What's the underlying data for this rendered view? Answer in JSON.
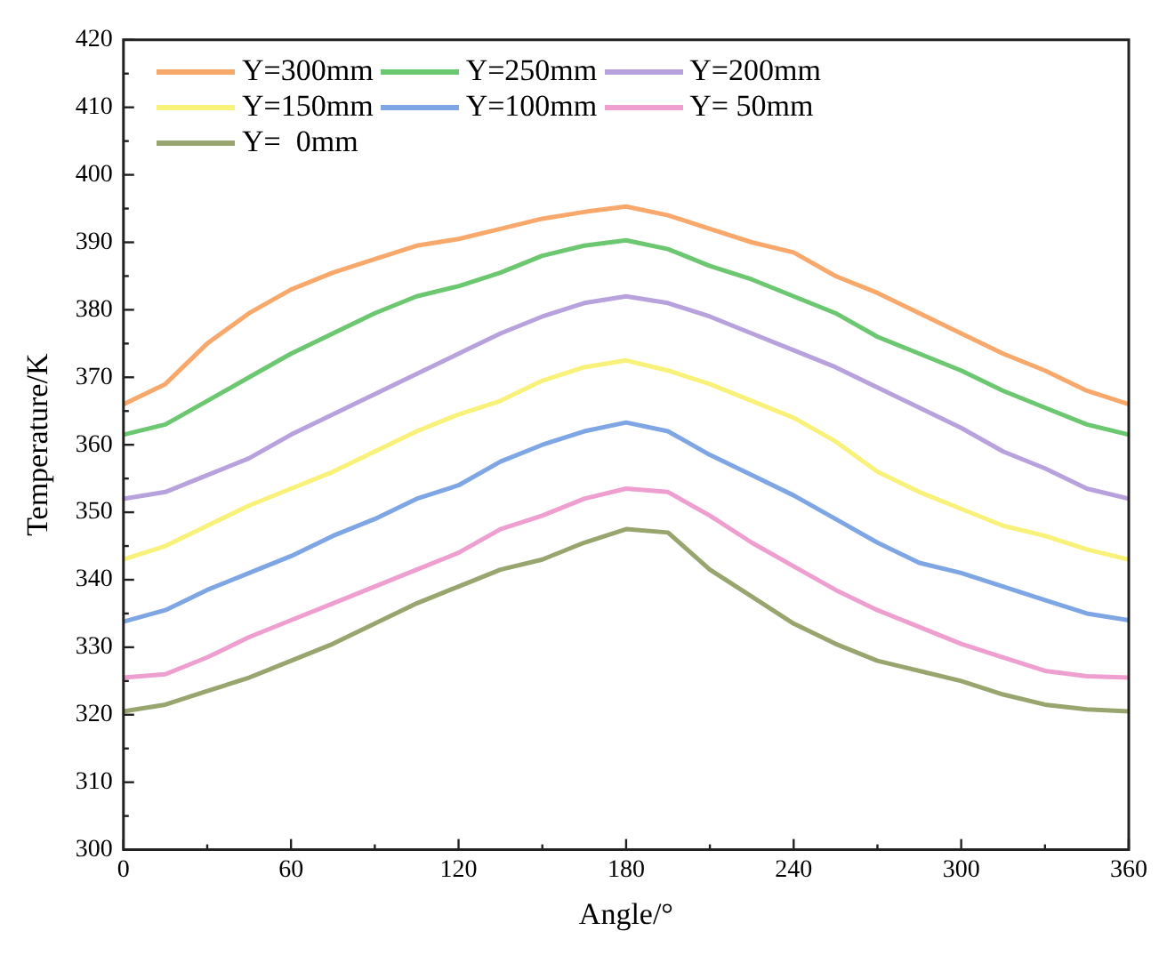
{
  "chart_data": {
    "type": "line",
    "xlabel": "Angle/°",
    "ylabel": "Temperature/K",
    "x": [
      0,
      15,
      30,
      45,
      60,
      75,
      90,
      105,
      120,
      135,
      150,
      165,
      180,
      195,
      210,
      225,
      240,
      255,
      270,
      285,
      300,
      315,
      330,
      345,
      360
    ],
    "xlim": [
      0,
      360
    ],
    "xticks": [
      0,
      60,
      120,
      180,
      240,
      300,
      360
    ],
    "ylim": [
      300,
      420
    ],
    "yticks": [
      300,
      310,
      320,
      330,
      340,
      350,
      360,
      370,
      380,
      390,
      400,
      410,
      420
    ],
    "grid": false,
    "legend": "top left",
    "marker": "none",
    "line_style": "solid",
    "series": [
      {
        "name": "Y=300mm",
        "color": "#f9a86b",
        "values": [
          366,
          369,
          375,
          379.5,
          383,
          385.5,
          387.5,
          389.5,
          390.5,
          392,
          393.5,
          394.5,
          395.3,
          394,
          392,
          390,
          388.5,
          385,
          382.5,
          379.5,
          376.5,
          373.5,
          371,
          368,
          366
        ]
      },
      {
        "name": "Y=250mm",
        "color": "#6cc870",
        "values": [
          361.5,
          363,
          366.5,
          370,
          373.5,
          376.5,
          379.5,
          382,
          383.5,
          385.5,
          388,
          389.5,
          390.3,
          389,
          386.5,
          384.5,
          382,
          379.5,
          376,
          373.5,
          371,
          368,
          365.5,
          363,
          361.5
        ]
      },
      {
        "name": "Y=200mm",
        "color": "#b8a2de",
        "values": [
          352,
          353,
          355.5,
          358,
          361.5,
          364.5,
          367.5,
          370.5,
          373.5,
          376.5,
          379,
          381,
          382,
          381,
          379,
          376.5,
          374,
          371.5,
          368.5,
          365.5,
          362.5,
          359,
          356.5,
          353.5,
          352
        ]
      },
      {
        "name": "Y=150mm",
        "color": "#f9f27a",
        "values": [
          343,
          345,
          348,
          351,
          353.5,
          356,
          359,
          362,
          364.5,
          366.5,
          369.5,
          371.5,
          372.5,
          371,
          369,
          366.5,
          364,
          360.5,
          356,
          353,
          350.5,
          348,
          346.5,
          344.5,
          343
        ]
      },
      {
        "name": "Y=100mm",
        "color": "#7ea6e4",
        "values": [
          333.8,
          335.5,
          338.5,
          341,
          343.5,
          346.5,
          349,
          352,
          354,
          357.5,
          360,
          362,
          363.3,
          362,
          358.5,
          355.5,
          352.5,
          349,
          345.5,
          342.5,
          341,
          339,
          337,
          335,
          334
        ]
      },
      {
        "name": "Y= 50mm",
        "color": "#ee9fcf",
        "values": [
          325.5,
          326,
          328.5,
          331.5,
          334,
          336.5,
          339,
          341.5,
          344,
          347.5,
          349.5,
          352,
          353.5,
          353,
          349.5,
          345.5,
          342,
          338.5,
          335.5,
          333,
          330.5,
          328.5,
          326.5,
          325.7,
          325.5
        ]
      },
      {
        "name": "Y=  0mm",
        "color": "#98a56e",
        "values": [
          320.5,
          321.5,
          323.5,
          325.5,
          328,
          330.5,
          333.5,
          336.5,
          339,
          341.5,
          343,
          345.5,
          347.5,
          347,
          341.5,
          337.5,
          333.5,
          330.5,
          328,
          326.5,
          325,
          323,
          321.5,
          320.8,
          320.5
        ]
      }
    ]
  }
}
